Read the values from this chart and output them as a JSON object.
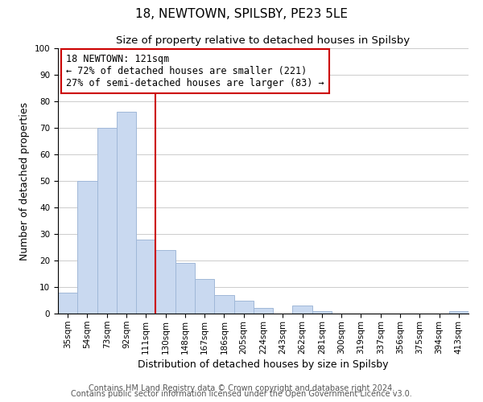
{
  "title": "18, NEWTOWN, SPILSBY, PE23 5LE",
  "subtitle": "Size of property relative to detached houses in Spilsby",
  "xlabel": "Distribution of detached houses by size in Spilsby",
  "ylabel": "Number of detached properties",
  "footnote1": "Contains HM Land Registry data © Crown copyright and database right 2024.",
  "footnote2": "Contains public sector information licensed under the Open Government Licence v3.0.",
  "bar_labels": [
    "35sqm",
    "54sqm",
    "73sqm",
    "92sqm",
    "111sqm",
    "130sqm",
    "148sqm",
    "167sqm",
    "186sqm",
    "205sqm",
    "224sqm",
    "243sqm",
    "262sqm",
    "281sqm",
    "300sqm",
    "319sqm",
    "337sqm",
    "356sqm",
    "375sqm",
    "394sqm",
    "413sqm"
  ],
  "bar_values": [
    8,
    50,
    70,
    76,
    28,
    24,
    19,
    13,
    7,
    5,
    2,
    0,
    3,
    1,
    0,
    0,
    0,
    0,
    0,
    0,
    1
  ],
  "bar_color": "#c9d9f0",
  "bar_edge_color": "#a0b8d8",
  "vline_x": 4.5,
  "vline_color": "#cc0000",
  "annotation_text": "18 NEWTOWN: 121sqm\n← 72% of detached houses are smaller (221)\n27% of semi-detached houses are larger (83) →",
  "annotation_box_color": "#ffffff",
  "annotation_box_edge": "#cc0000",
  "ylim": [
    0,
    100
  ],
  "yticks": [
    0,
    10,
    20,
    30,
    40,
    50,
    60,
    70,
    80,
    90,
    100
  ],
  "grid_color": "#cccccc",
  "background_color": "#ffffff",
  "title_fontsize": 11,
  "subtitle_fontsize": 9.5,
  "axis_label_fontsize": 9,
  "tick_fontsize": 7.5,
  "annotation_fontsize": 8.5,
  "footnote_fontsize": 7
}
